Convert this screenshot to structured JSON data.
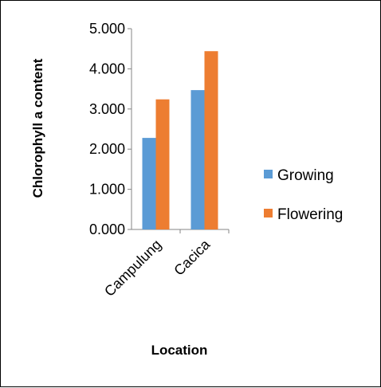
{
  "chart_data": {
    "type": "bar",
    "categories": [
      "Campulung",
      "Cacica"
    ],
    "series": [
      {
        "name": "Growing",
        "values": [
          2.28,
          3.47
        ],
        "color": "#5B9BD5"
      },
      {
        "name": "Flowering",
        "values": [
          3.24,
          4.44
        ],
        "color": "#ED7D31"
      }
    ],
    "xlabel": "Location",
    "ylabel": "Chlorophyll a content",
    "ylim": [
      0,
      5
    ],
    "yticks": [
      "0.000",
      "1.000",
      "2.000",
      "3.000",
      "4.000",
      "5.000"
    ],
    "grid": false,
    "legend": "right"
  }
}
